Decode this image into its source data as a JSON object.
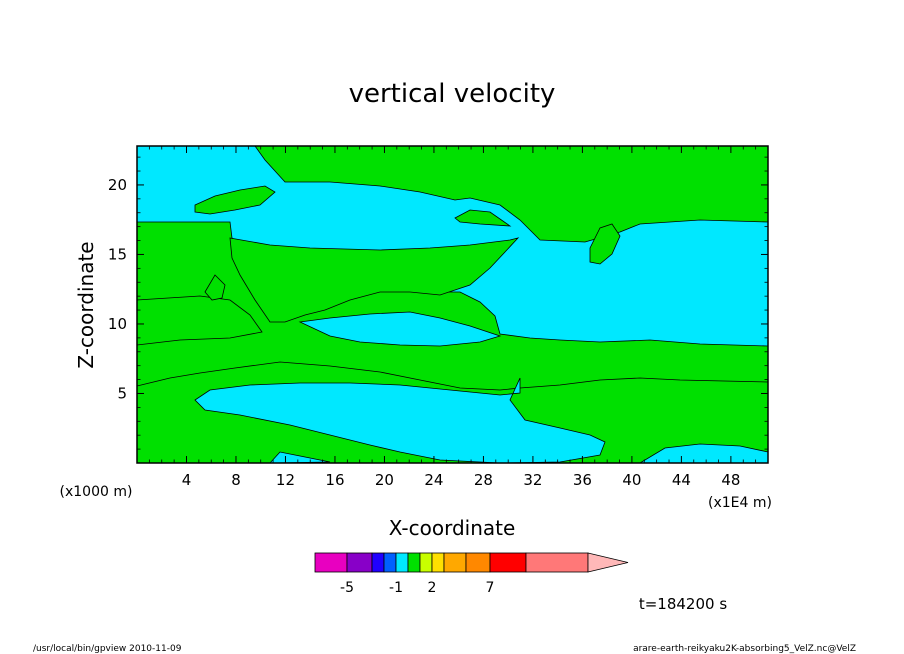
{
  "chart_data": {
    "type": "heatmap",
    "title": "vertical velocity",
    "xlabel": "X-coordinate",
    "ylabel": "Z-coordinate",
    "x_unit_left": "(x1000 m)",
    "x_unit_right": "(x1E4 m)",
    "x_ticks": [
      "4",
      "8",
      "12",
      "16",
      "20",
      "24",
      "28",
      "32",
      "36",
      "40",
      "44",
      "48"
    ],
    "y_ticks": [
      "5",
      "10",
      "15",
      "20"
    ],
    "xlim": [
      0,
      51
    ],
    "ylim": [
      0,
      22.8
    ],
    "colors": {
      "negative": "#00e8ff",
      "positive": "#00e000",
      "frame": "#000000"
    },
    "colorbar": {
      "colors": [
        "#e800c0",
        "#8800c8",
        "#2000ff",
        "#0060ff",
        "#00e8ff",
        "#00e000",
        "#c8ff00",
        "#ffe000",
        "#ffa800",
        "#ff8800",
        "#ff0000",
        "#ff7878",
        "#ffb8b8"
      ],
      "labels": [
        "-5",
        "-1",
        "2",
        "7"
      ]
    },
    "time_label": "t=184200 s",
    "footer_left": "/usr/local/bin/gpview   2010-11-09",
    "footer_right": "arare-earth-reikyaku2K-absorbing5_VelZ.nc@VelZ"
  }
}
